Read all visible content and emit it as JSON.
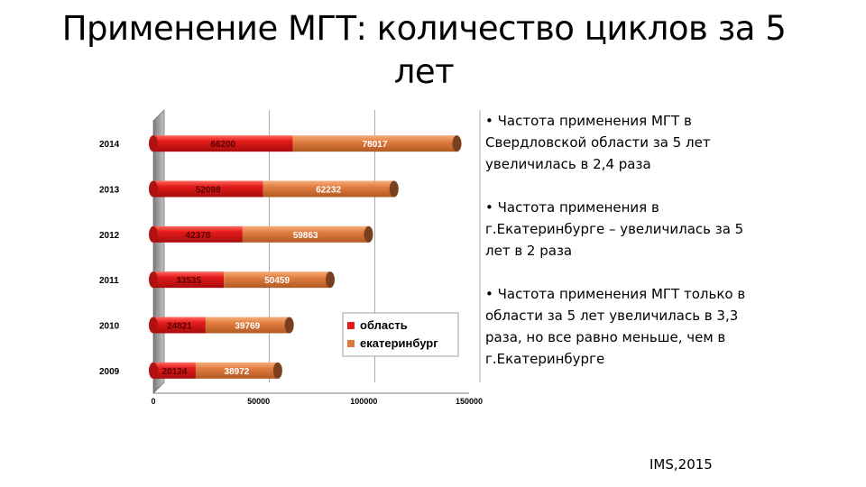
{
  "slide": {
    "title": "Применение МГТ: количество циклов за 5 лет",
    "bullets": [
      "• Частота  применения МГТ в Свердловской области за 5 лет увеличилась в 2,4 раза",
      "• Частота применения в г.Екатеринбурге – увеличилась за 5 лет в 2 раза",
      "• Частота применения МГТ только в области за 5 лет увеличилась в 3,3 раза, но все равно меньше, чем в г.Екатеринбурге"
    ],
    "footer": "IMS,2015"
  },
  "chart_data": {
    "type": "bar",
    "orientation": "horizontal",
    "stacked": true,
    "style": "3d-cylinder",
    "categories": [
      "2009",
      "2010",
      "2011",
      "2012",
      "2013",
      "2014"
    ],
    "series": [
      {
        "name": "область",
        "color": "#e31b1b",
        "values": [
          20124,
          24821,
          33535,
          42378,
          52098,
          66200
        ]
      },
      {
        "name": "екатеринбург",
        "color": "#e07a3a",
        "values": [
          38972,
          39769,
          50459,
          59863,
          62232,
          78017
        ]
      }
    ],
    "xlim": [
      0,
      150000
    ],
    "xticks": [
      0,
      50000,
      100000,
      150000
    ],
    "legend_position": "right-inside",
    "gridlines": true
  }
}
